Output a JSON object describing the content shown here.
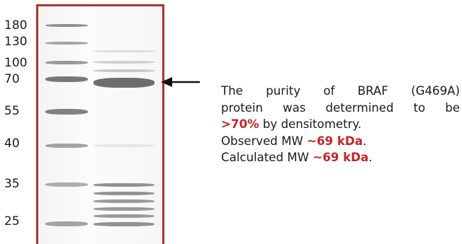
{
  "gel": {
    "border_color": "#b0322a",
    "marker_labels": [
      "180",
      "130",
      "100",
      "70",
      "55",
      "40",
      "35",
      "25"
    ]
  },
  "description": {
    "line1_words": [
      "The",
      "purity",
      "of",
      "BRAF",
      "(G469A)"
    ],
    "line2_words": [
      "protein",
      "was",
      "determined",
      "to",
      "be"
    ],
    "purity_value": ">70%",
    "line3_rest": " by densitometry.",
    "observed_prefix": "Observed MW ",
    "observed_value": "~69 kDa",
    "observed_suffix": ".",
    "calculated_prefix": "Calculated MW ",
    "calculated_value": "~69 kDa",
    "calculated_suffix": ".",
    "highlight_color": "#c0262a"
  },
  "arrow": {
    "icon": "left-arrow-icon"
  }
}
